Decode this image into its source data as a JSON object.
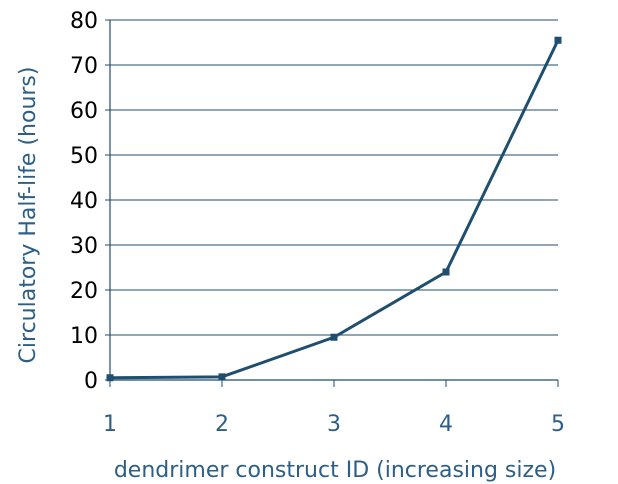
{
  "colors": {
    "series": "#1f4e6e",
    "axis_text": "#2d5f86",
    "y_tick_text": "#000000",
    "grid": "#1f4e6e"
  },
  "chart_data": {
    "type": "line",
    "title": "",
    "xlabel": "dendrimer construct ID (increasing size)",
    "ylabel": "Circulatory Half-life (hours)",
    "x": [
      1,
      2,
      3,
      4,
      5
    ],
    "x_tick_labels": [
      "1",
      "2",
      "3",
      "4",
      "5"
    ],
    "y_tick_labels": [
      "0",
      "10",
      "20",
      "30",
      "40",
      "50",
      "60",
      "70",
      "80"
    ],
    "ylim": [
      0,
      80
    ],
    "xlim": [
      1,
      5
    ],
    "grid": true,
    "legend": "none",
    "series": [
      {
        "values": [
          0.5,
          0.7,
          9.5,
          24,
          75.5
        ]
      }
    ]
  }
}
